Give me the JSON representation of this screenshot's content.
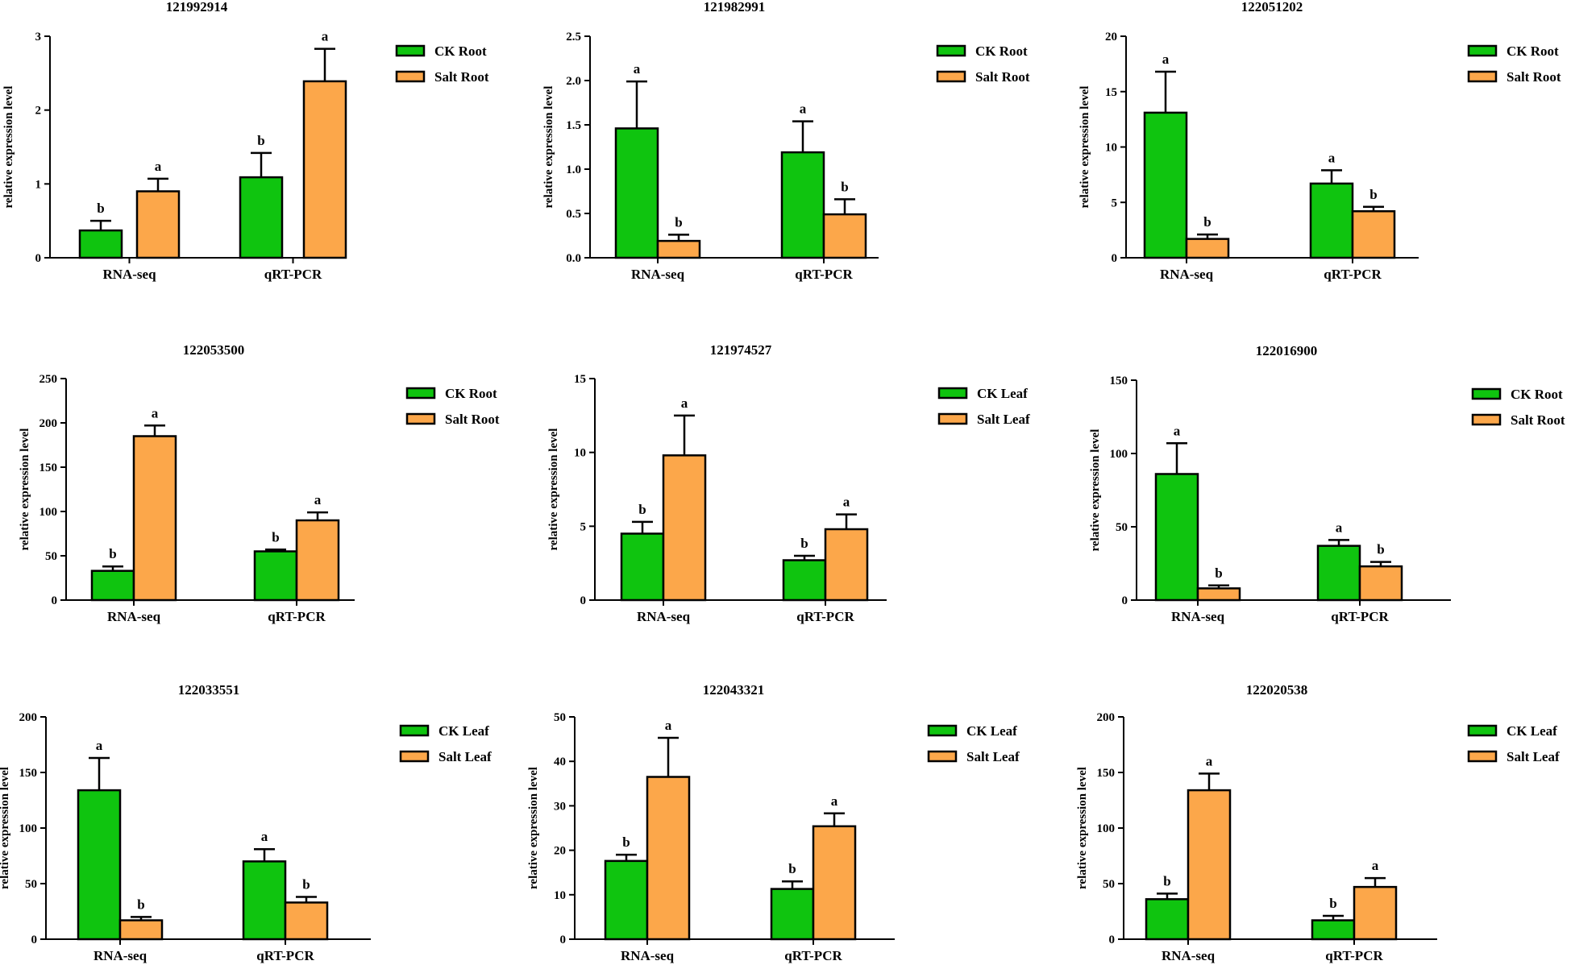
{
  "colors": {
    "ck": "#0fc40f",
    "salt": "#fca74a",
    "axis": "#000000"
  },
  "chart_data": [
    {
      "type": "bar",
      "title": "121992914",
      "xlabel": "",
      "ylabel": "relative expression level",
      "categories": [
        "RNA-seq",
        "qRT-PCR"
      ],
      "ylim": [
        0,
        3
      ],
      "yticks": [
        "0",
        "1",
        "2",
        "3"
      ],
      "series": [
        {
          "name": "CK Root",
          "values": [
            0.37,
            1.09
          ],
          "errors": [
            0.13,
            0.33
          ],
          "letters": [
            "b",
            "b"
          ]
        },
        {
          "name": "Salt Root",
          "values": [
            0.9,
            2.39
          ],
          "errors": [
            0.17,
            0.44
          ],
          "letters": [
            "a",
            "a"
          ]
        }
      ]
    },
    {
      "type": "bar",
      "title": "121982991",
      "xlabel": "",
      "ylabel": "relative expression level",
      "categories": [
        "RNA-seq",
        "qRT-PCR"
      ],
      "ylim": [
        0,
        2.5
      ],
      "yticks": [
        "0.0",
        "0.5",
        "1.0",
        "1.5",
        "2.0",
        "2.5"
      ],
      "series": [
        {
          "name": "CK Root",
          "values": [
            1.46,
            1.19
          ],
          "errors": [
            0.53,
            0.35
          ],
          "letters": [
            "a",
            "a"
          ]
        },
        {
          "name": "Salt Root",
          "values": [
            0.19,
            0.49
          ],
          "errors": [
            0.07,
            0.17
          ],
          "letters": [
            "b",
            "b"
          ]
        }
      ]
    },
    {
      "type": "bar",
      "title": "122051202",
      "xlabel": "",
      "ylabel": "relative expression level",
      "categories": [
        "RNA-seq",
        "qRT-PCR"
      ],
      "ylim": [
        0,
        20
      ],
      "yticks": [
        "0",
        "5",
        "10",
        "15",
        "20"
      ],
      "series": [
        {
          "name": "CK Root",
          "values": [
            13.1,
            6.7
          ],
          "errors": [
            3.7,
            1.2
          ],
          "letters": [
            "a",
            "a"
          ]
        },
        {
          "name": "Salt Root",
          "values": [
            1.7,
            4.2
          ],
          "errors": [
            0.4,
            0.4
          ],
          "letters": [
            "b",
            "b"
          ]
        }
      ]
    },
    {
      "type": "bar",
      "title": "122053500",
      "xlabel": "",
      "ylabel": "relative expression level",
      "categories": [
        "RNA-seq",
        "qRT-PCR"
      ],
      "ylim": [
        0,
        250
      ],
      "yticks": [
        "0",
        "50",
        "100",
        "150",
        "200",
        "250"
      ],
      "series": [
        {
          "name": "CK Root",
          "values": [
            33,
            55
          ],
          "errors": [
            5,
            2
          ],
          "letters": [
            "b",
            "b"
          ]
        },
        {
          "name": "Salt Root",
          "values": [
            185,
            90
          ],
          "errors": [
            12,
            9
          ],
          "letters": [
            "a",
            "a"
          ]
        }
      ]
    },
    {
      "type": "bar",
      "title": "121974527",
      "xlabel": "",
      "ylabel": "relative expression level",
      "categories": [
        "RNA-seq",
        "qRT-PCR"
      ],
      "ylim": [
        0,
        15
      ],
      "yticks": [
        "0",
        "5",
        "10",
        "15"
      ],
      "series": [
        {
          "name": "CK Leaf",
          "values": [
            4.5,
            2.7
          ],
          "errors": [
            0.8,
            0.3
          ],
          "letters": [
            "b",
            "b"
          ]
        },
        {
          "name": "Salt Leaf",
          "values": [
            9.8,
            4.8
          ],
          "errors": [
            2.7,
            1.0
          ],
          "letters": [
            "a",
            "a"
          ]
        }
      ]
    },
    {
      "type": "bar",
      "title": "122016900",
      "xlabel": "",
      "ylabel": "relative expression level",
      "categories": [
        "RNA-seq",
        "qRT-PCR"
      ],
      "ylim": [
        0,
        150
      ],
      "yticks": [
        "0",
        "50",
        "100",
        "150"
      ],
      "series": [
        {
          "name": "CK Root",
          "values": [
            86,
            37
          ],
          "errors": [
            21,
            4
          ],
          "letters": [
            "a",
            "a"
          ]
        },
        {
          "name": "Salt Root",
          "values": [
            8,
            23
          ],
          "errors": [
            2,
            3
          ],
          "letters": [
            "b",
            "b"
          ]
        }
      ]
    },
    {
      "type": "bar",
      "title": "122033551",
      "xlabel": "",
      "ylabel": "relative expression level",
      "categories": [
        "RNA-seq",
        "qRT-PCR"
      ],
      "ylim": [
        0,
        200
      ],
      "yticks": [
        "0",
        "50",
        "100",
        "150",
        "200"
      ],
      "series": [
        {
          "name": "CK Leaf",
          "values": [
            134,
            70
          ],
          "errors": [
            29,
            11
          ],
          "letters": [
            "a",
            "a"
          ]
        },
        {
          "name": "Salt Leaf",
          "values": [
            17,
            33
          ],
          "errors": [
            3,
            5
          ],
          "letters": [
            "b",
            "b"
          ]
        }
      ]
    },
    {
      "type": "bar",
      "title": "122043321",
      "xlabel": "",
      "ylabel": "relative expression level",
      "categories": [
        "RNA-seq",
        "qRT-PCR"
      ],
      "ylim": [
        0,
        50
      ],
      "yticks": [
        "0",
        "10",
        "20",
        "30",
        "40",
        "50"
      ],
      "series": [
        {
          "name": "CK Leaf",
          "values": [
            17.6,
            11.3
          ],
          "errors": [
            1.4,
            1.7
          ],
          "letters": [
            "b",
            "b"
          ]
        },
        {
          "name": "Salt Leaf",
          "values": [
            36.5,
            25.4
          ],
          "errors": [
            8.8,
            2.9
          ],
          "letters": [
            "a",
            "a"
          ]
        }
      ]
    },
    {
      "type": "bar",
      "title": "122020538",
      "xlabel": "",
      "ylabel": "relative expression level",
      "categories": [
        "RNA-seq",
        "qRT-PCR"
      ],
      "ylim": [
        0,
        200
      ],
      "yticks": [
        "0",
        "50",
        "100",
        "150",
        "200"
      ],
      "series": [
        {
          "name": "CK Leaf",
          "values": [
            36,
            17
          ],
          "errors": [
            5,
            4
          ],
          "letters": [
            "b",
            "b"
          ]
        },
        {
          "name": "Salt Leaf",
          "values": [
            134,
            47
          ],
          "errors": [
            15,
            8
          ],
          "letters": [
            "a",
            "a"
          ]
        }
      ]
    }
  ]
}
